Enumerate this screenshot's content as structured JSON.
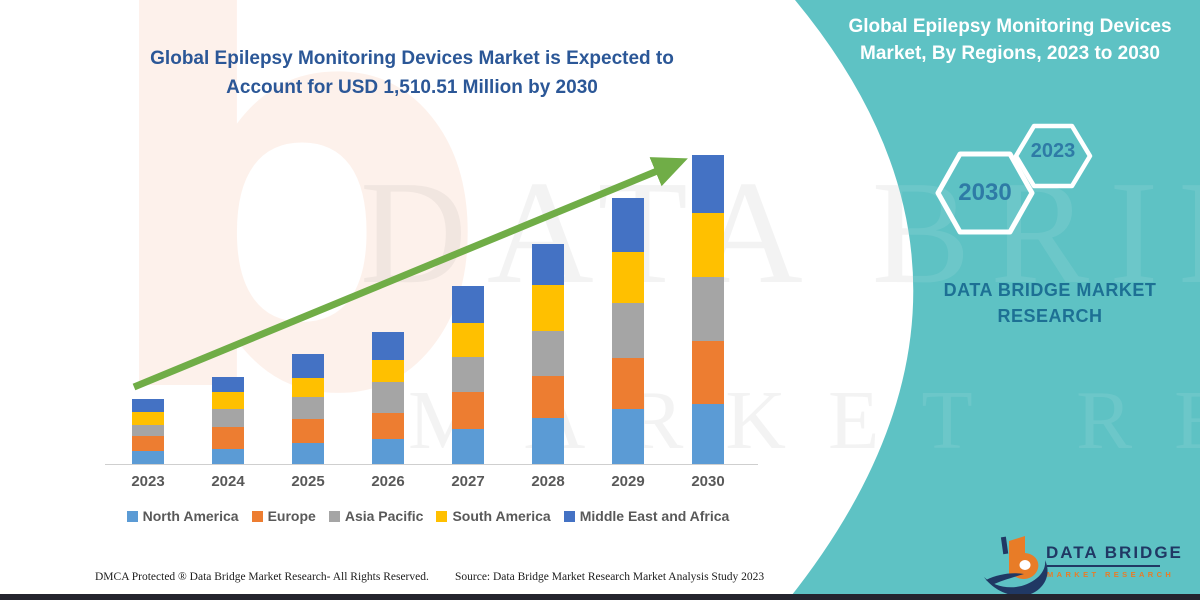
{
  "left_panel": {
    "title": "Global Epilepsy Monitoring Devices Market is Expected to Account for USD 1,510.51 Million by 2030",
    "footer_dmca": "DMCA Protected ® Data Bridge Market Research- All Rights Reserved.",
    "footer_source": "Source: Data Bridge Market Research Market Analysis Study 2023"
  },
  "right_panel": {
    "title": "Global Epilepsy Monitoring Devices Market, By Regions, 2023 to 2030",
    "hexagons": [
      {
        "label": "2030"
      },
      {
        "label": "2023"
      }
    ],
    "brand_line1": "DATA BRIDGE MARKET",
    "brand_line2": "RESEARCH",
    "logo": {
      "name": "DATA BRIDGE",
      "subtitle": "MARKET RESEARCH"
    }
  },
  "watermark": {
    "line1": "DATA BRIDGE",
    "line2": "MARKET RESEARCH",
    "letter_b": "b"
  },
  "colors": {
    "teal_background": "#5ec2c4",
    "title_blue": "#2b5797",
    "hex_year_blue": "#2e7ba6",
    "brand_teal_blue": "#1d7094",
    "logo_navy": "#203864",
    "logo_orange": "#e87c27",
    "trend_arrow_green": "#70AD47",
    "axis_gray": "#cfcfcf",
    "label_gray": "#595959"
  },
  "chart_data": {
    "type": "bar",
    "stacked": true,
    "unit": "USD Million",
    "title": "",
    "xlabel": "",
    "ylabel": "",
    "categories": [
      "2023",
      "2024",
      "2025",
      "2026",
      "2027",
      "2028",
      "2029",
      "2030"
    ],
    "series": [
      {
        "name": "North America",
        "color": "#5B9BD5",
        "values": [
          62,
          75,
          101,
          122,
          171,
          225,
          267,
          293
        ]
      },
      {
        "name": "Europe",
        "color": "#ED7D31",
        "values": [
          73,
          106,
          119,
          128,
          182,
          203,
          249,
          309
        ]
      },
      {
        "name": "Asia Pacific",
        "color": "#A5A5A5",
        "values": [
          57,
          88,
          106,
          151,
          168,
          220,
          269,
          313
        ]
      },
      {
        "name": "South America",
        "color": "#FFC000",
        "values": [
          60,
          81,
          96,
          106,
          166,
          225,
          252,
          309
        ]
      },
      {
        "name": "Middle East and Africa",
        "color": "#4472C4",
        "values": [
          65,
          75,
          116,
          138,
          184,
          202,
          261,
          286.51
        ]
      }
    ],
    "totals": [
      317,
      425,
      538,
      645,
      871,
      1075,
      1298,
      1510.51
    ],
    "ylim": [
      0,
      1600
    ],
    "gridlines": false,
    "legend_position": "bottom",
    "trend_arrow": {
      "present": true,
      "color": "#70AD47",
      "from": [
        134,
        387
      ],
      "to": [
        692,
        151
      ]
    }
  }
}
